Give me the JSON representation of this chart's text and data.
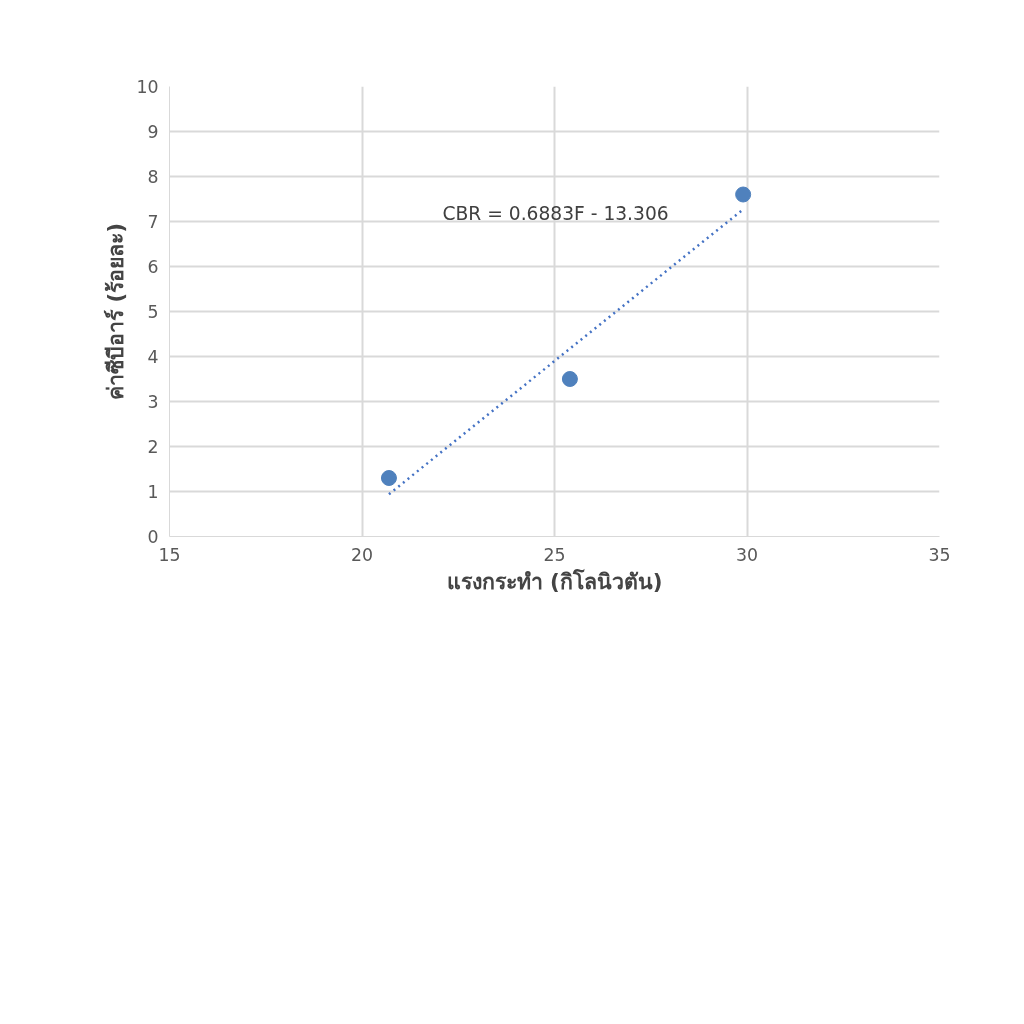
{
  "chart_data": {
    "type": "scatter",
    "xlabel": "แรงกระทำ (กิโลนิวตัน)",
    "ylabel": "ค่าซีบีอาร์ (ร้อยละ)",
    "x": [
      20.7,
      25.4,
      29.9
    ],
    "series": [
      {
        "color": "#4f81bd",
        "values": [
          1.3,
          3.5,
          7.6
        ],
        "marker": "circle"
      },
      {
        "type": "line",
        "color": "#4472c4",
        "x": [
          20.7,
          29.9
        ],
        "values": [
          0.94,
          7.27
        ],
        "line_style": "dotted",
        "marker": "none"
      }
    ],
    "annotations": [
      "CBR = 0.6883F - 13.306"
    ],
    "xlim": [
      15,
      35
    ],
    "xticks": [
      15,
      20,
      25,
      30,
      35
    ],
    "ylim": [
      0,
      10
    ],
    "yticks": [
      0,
      1,
      2,
      3,
      4,
      5,
      6,
      7,
      8,
      9,
      10
    ],
    "grid": true
  }
}
